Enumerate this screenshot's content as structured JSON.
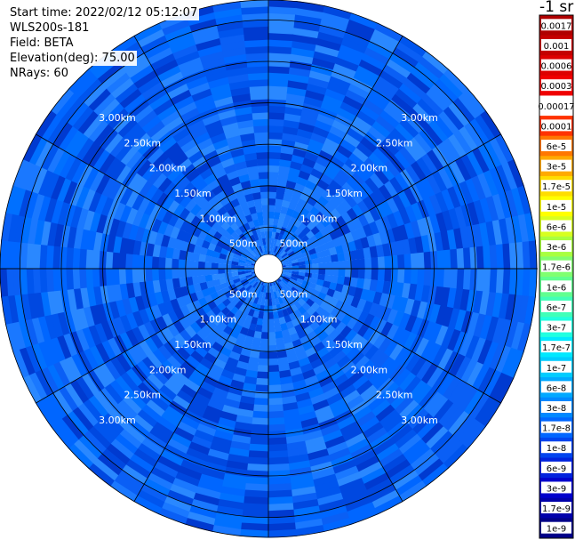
{
  "header": {
    "start_time": "Start time: 2022/02/12 05:12:07",
    "instrument": "WLS200s-181",
    "field": "Field: BETA",
    "elevation": "Elevation(deg): 75.00",
    "nrays": "NRays: 60"
  },
  "colorbar": {
    "unit_label": "-1 sr",
    "labels": [
      "0.0017",
      "0.001",
      "0.0006",
      "0.0003",
      "0.00017",
      "0.0001",
      "6e-5",
      "3e-5",
      "1.7e-5",
      "1e-5",
      "6e-6",
      "3e-6",
      "1.7e-6",
      "1e-6",
      "6e-7",
      "3e-7",
      "1.7e-7",
      "1e-7",
      "6e-8",
      "3e-8",
      "1.7e-8",
      "1e-8",
      "6e-9",
      "3e-9",
      "1.7e-9",
      "1e-9"
    ],
    "colors": [
      "#b00000",
      "#c40000",
      "#dd0000",
      "#f00000",
      "#ffffff",
      "#ff3300",
      "#ff7700",
      "#ffaa00",
      "#ffdd00",
      "#ffff00",
      "#d8ff20",
      "#a8ff40",
      "#80ff70",
      "#60ff90",
      "#40ffb8",
      "#20ffe0",
      "#00e8ff",
      "#00ccff",
      "#00a8ff",
      "#0088ff",
      "#0066ff",
      "#0044ee",
      "#0022dd",
      "#0000cc",
      "#0000aa",
      "#000088"
    ]
  },
  "chart_data": {
    "type": "heatmap",
    "projection": "polar (PPI)",
    "range_rings_km": [
      0.5,
      1.0,
      1.5,
      2.0,
      2.5,
      3.0
    ],
    "ring_labels": [
      "500m",
      "1.00km",
      "1.50km",
      "2.00km",
      "2.50km",
      "3.00km"
    ],
    "max_range_km": 3.24,
    "spoke_angles_deg": [
      0,
      30,
      60,
      90,
      120,
      150,
      180,
      210,
      240,
      270,
      300,
      330
    ],
    "value_range": [
      "1e-9",
      "0.0017"
    ],
    "dominant_range": [
      "1.7e-8",
      "1e-7"
    ],
    "legend_placement": "right"
  }
}
